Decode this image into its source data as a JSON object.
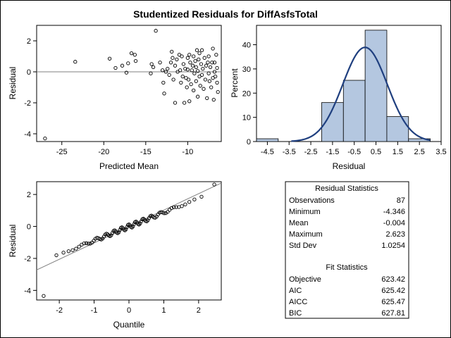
{
  "title": "Studentized Residuals for DiffAsfsTotal",
  "chart_data": [
    {
      "type": "scatter",
      "panel": "residual-vs-predicted",
      "xlabel": "Predicted Mean",
      "ylabel": "Residual",
      "xlim": [
        -28,
        -6
      ],
      "ylim": [
        -4.5,
        3
      ],
      "x_ticks": [
        -25,
        -20,
        -15,
        -10
      ],
      "y_ticks": [
        -4,
        -2,
        0,
        2
      ],
      "reference_line_y": 0,
      "colors": {
        "points": "#000000",
        "reference_line": "#808080"
      },
      "points": [
        {
          "x": -27,
          "y": -4.3
        },
        {
          "x": -23.4,
          "y": 0.65
        },
        {
          "x": -19.3,
          "y": 0.85
        },
        {
          "x": -18.6,
          "y": 0.25
        },
        {
          "x": -17.8,
          "y": 0.4
        },
        {
          "x": -17.3,
          "y": -0.05
        },
        {
          "x": -17.1,
          "y": 0.55
        },
        {
          "x": -16.7,
          "y": 1.2
        },
        {
          "x": -16.3,
          "y": 1.1
        },
        {
          "x": -16.2,
          "y": 0.7
        },
        {
          "x": -14.4,
          "y": -0.1
        },
        {
          "x": -14.3,
          "y": 0.5
        },
        {
          "x": -14.1,
          "y": 0.3
        },
        {
          "x": -13.8,
          "y": 2.65
        },
        {
          "x": -13.3,
          "y": 0.6
        },
        {
          "x": -13.0,
          "y": 0.1
        },
        {
          "x": -12.9,
          "y": -0.7
        },
        {
          "x": -12.8,
          "y": -1.4
        },
        {
          "x": -12.6,
          "y": 0.0
        },
        {
          "x": -12.4,
          "y": 0.2
        },
        {
          "x": -12.2,
          "y": -0.2
        },
        {
          "x": -12.0,
          "y": 0.6
        },
        {
          "x": -11.9,
          "y": 1.3
        },
        {
          "x": -11.8,
          "y": 0.9
        },
        {
          "x": -11.7,
          "y": -0.5
        },
        {
          "x": -11.5,
          "y": -2.0
        },
        {
          "x": -11.5,
          "y": 0.4
        },
        {
          "x": -11.3,
          "y": 0.8
        },
        {
          "x": -11.2,
          "y": 0.0
        },
        {
          "x": -11.0,
          "y": 1.1
        },
        {
          "x": -10.9,
          "y": 0.1
        },
        {
          "x": -10.8,
          "y": -0.7
        },
        {
          "x": -10.7,
          "y": 1.0
        },
        {
          "x": -10.6,
          "y": -0.3
        },
        {
          "x": -10.5,
          "y": 0.5
        },
        {
          "x": -10.4,
          "y": -2.0
        },
        {
          "x": -10.3,
          "y": 0.2
        },
        {
          "x": -10.2,
          "y": -0.4
        },
        {
          "x": -10.1,
          "y": -1.0
        },
        {
          "x": -10.0,
          "y": 0.9
        },
        {
          "x": -10.0,
          "y": 0.15
        },
        {
          "x": -9.9,
          "y": -0.5
        },
        {
          "x": -9.8,
          "y": 1.1
        },
        {
          "x": -9.8,
          "y": -1.9
        },
        {
          "x": -9.7,
          "y": 0.6
        },
        {
          "x": -9.6,
          "y": -0.8
        },
        {
          "x": -9.5,
          "y": 0.1
        },
        {
          "x": -9.4,
          "y": 0.4
        },
        {
          "x": -9.3,
          "y": -1.2
        },
        {
          "x": -9.3,
          "y": 1.0
        },
        {
          "x": -9.2,
          "y": -0.1
        },
        {
          "x": -9.1,
          "y": 0.7
        },
        {
          "x": -9.0,
          "y": -0.6
        },
        {
          "x": -9.0,
          "y": 0.3
        },
        {
          "x": -8.9,
          "y": 1.4
        },
        {
          "x": -8.8,
          "y": -1.6
        },
        {
          "x": -8.8,
          "y": 0.05
        },
        {
          "x": -8.7,
          "y": 0.8
        },
        {
          "x": -8.6,
          "y": -0.3
        },
        {
          "x": -8.6,
          "y": 1.2
        },
        {
          "x": -8.5,
          "y": -0.9
        },
        {
          "x": -8.4,
          "y": 0.5
        },
        {
          "x": -8.3,
          "y": 1.4
        },
        {
          "x": -8.3,
          "y": -0.2
        },
        {
          "x": -8.2,
          "y": 0.2
        },
        {
          "x": -8.1,
          "y": -1.1
        },
        {
          "x": -8.0,
          "y": 0.9
        },
        {
          "x": -7.9,
          "y": -0.5
        },
        {
          "x": -7.8,
          "y": 0.4
        },
        {
          "x": -7.7,
          "y": -1.7
        },
        {
          "x": -7.6,
          "y": 0.6
        },
        {
          "x": -7.5,
          "y": 1.0
        },
        {
          "x": -7.5,
          "y": -0.1
        },
        {
          "x": -7.4,
          "y": -0.6
        },
        {
          "x": -7.3,
          "y": 0.3
        },
        {
          "x": -7.2,
          "y": -1.0
        },
        {
          "x": -7.1,
          "y": 0.6
        },
        {
          "x": -7.0,
          "y": 1.5
        },
        {
          "x": -7.0,
          "y": -0.4
        },
        {
          "x": -6.9,
          "y": -1.8
        },
        {
          "x": -6.8,
          "y": 0.0
        },
        {
          "x": -6.8,
          "y": 0.6
        },
        {
          "x": -6.7,
          "y": -0.3
        },
        {
          "x": -6.6,
          "y": 1.1
        },
        {
          "x": -6.5,
          "y": -0.7
        },
        {
          "x": -6.5,
          "y": 0.25
        },
        {
          "x": -6.4,
          "y": -1.3
        }
      ]
    },
    {
      "type": "bar",
      "panel": "residual-histogram",
      "xlabel": "Residual",
      "ylabel": "Percent",
      "xlim": [
        -5,
        3.5
      ],
      "ylim": [
        0,
        48
      ],
      "x_ticks": [
        -4.5,
        -3.5,
        -2.5,
        -1.5,
        -0.5,
        0.5,
        1.5,
        2.5,
        3.5
      ],
      "y_ticks": [
        0,
        10,
        20,
        30,
        40
      ],
      "bins": [
        {
          "from": -5,
          "to": -4,
          "percent": 1.15
        },
        {
          "from": -2,
          "to": -1,
          "percent": 16.1
        },
        {
          "from": -1,
          "to": 0,
          "percent": 25.3
        },
        {
          "from": 0,
          "to": 1,
          "percent": 46.0
        },
        {
          "from": 1,
          "to": 2,
          "percent": 10.3
        },
        {
          "from": 2,
          "to": 3,
          "percent": 1.15
        }
      ],
      "normal_curve": {
        "mean": -0.004,
        "std": 1.0254
      },
      "colors": {
        "bar_fill": "#b4c7e0",
        "bar_stroke": "#000000",
        "curve": "#1f3f7f"
      }
    },
    {
      "type": "scatter",
      "panel": "qq-plot",
      "xlabel": "Quantile",
      "ylabel": "Residual",
      "xlim": [
        -2.65,
        2.65
      ],
      "ylim": [
        -4.6,
        2.8
      ],
      "x_ticks": [
        -2,
        -1,
        0,
        1,
        2
      ],
      "y_ticks": [
        -4,
        -2,
        0,
        2
      ],
      "reference_line": {
        "intercept": -0.004,
        "slope": 1.0254
      },
      "n": 87,
      "extreme_points": {
        "min": -4.346,
        "max": 2.623
      },
      "colors": {
        "points": "#000000",
        "reference_line": "#808080"
      }
    }
  ],
  "stats_table": {
    "residual_header": "Residual Statistics",
    "residual_rows": [
      {
        "label": "Observations",
        "value": "87"
      },
      {
        "label": "Minimum",
        "value": "-4.346"
      },
      {
        "label": "Mean",
        "value": "-0.004"
      },
      {
        "label": "Maximum",
        "value": "2.623"
      },
      {
        "label": "Std Dev",
        "value": "1.0254"
      }
    ],
    "fit_header": "Fit Statistics",
    "fit_rows": [
      {
        "label": "Objective",
        "value": "623.42"
      },
      {
        "label": "AIC",
        "value": "625.42"
      },
      {
        "label": "AICC",
        "value": "625.47"
      },
      {
        "label": "BIC",
        "value": "627.81"
      }
    ]
  }
}
